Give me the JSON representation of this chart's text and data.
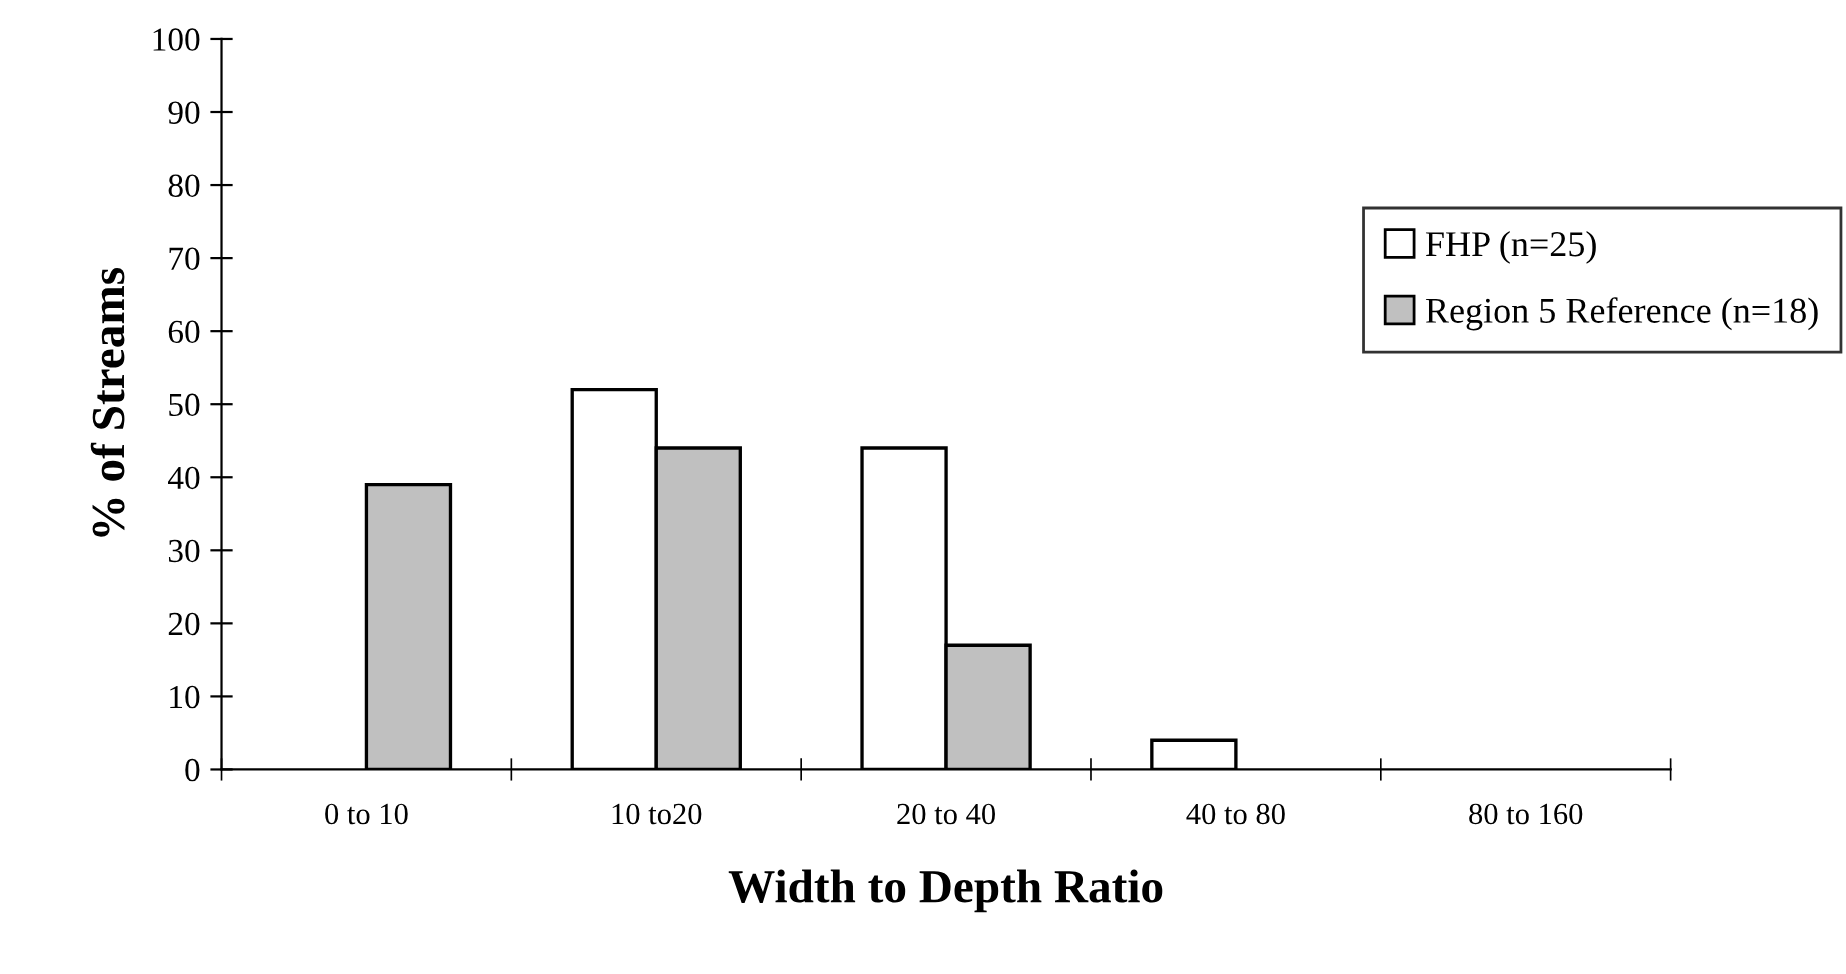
{
  "chart_data": {
    "type": "bar",
    "xlabel": "Width to Depth Ratio",
    "ylabel": "% of Streams",
    "categories": [
      "0 to 10",
      "10 to20",
      "20 to 40",
      "40 to 80",
      "80 to 160"
    ],
    "series": [
      {
        "name": "FHP (n=25)",
        "color": "#ffffff",
        "values": [
          null,
          52,
          44,
          4,
          null
        ]
      },
      {
        "name": "Region 5 Reference (n=18)",
        "color": "#c0c0c0",
        "values": [
          39,
          44,
          17,
          null,
          null
        ]
      }
    ],
    "ylim": [
      0,
      100
    ],
    "yticks": [
      0,
      10,
      20,
      30,
      40,
      50,
      60,
      70,
      80,
      90,
      100
    ],
    "grid": false,
    "legend": "right"
  }
}
